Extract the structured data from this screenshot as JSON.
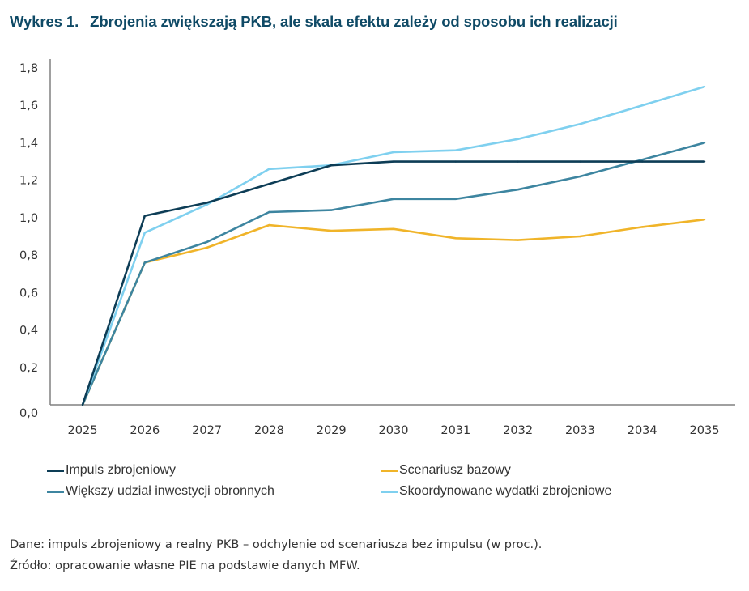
{
  "header": {
    "figure_number": "Wykres 1.",
    "title": "Zbrojenia zwiększają PKB, ale skala efektu zależy od sposobu ich realizacji"
  },
  "chart_data": {
    "type": "line",
    "title": "Zbrojenia zwiększają PKB, ale skala efektu zależy od sposobu ich realizacji",
    "xlabel": "",
    "ylabel": "",
    "x": [
      "2025",
      "2026",
      "2027",
      "2028",
      "2029",
      "2030",
      "2031",
      "2032",
      "2033",
      "2034",
      "2035"
    ],
    "ylim": [
      0,
      1.8
    ],
    "yticks": [
      "0,0",
      "0,2",
      "0,4",
      "0,6",
      "0,8",
      "1,0",
      "1,2",
      "1,4",
      "1,6",
      "1,8"
    ],
    "ytick_values": [
      0,
      0.2,
      0.4,
      0.6,
      0.8,
      1.0,
      1.2,
      1.4,
      1.6,
      1.8
    ],
    "grid": false,
    "legend_position": "bottom",
    "series": [
      {
        "name": "Impuls zbrojeniowy",
        "color": "#0d3d56",
        "values": [
          0,
          1.01,
          1.08,
          1.18,
          1.28,
          1.3,
          1.3,
          1.3,
          1.3,
          1.3,
          1.3
        ]
      },
      {
        "name": "Scenariusz bazowy",
        "color": "#f0b429",
        "values": [
          0,
          0.76,
          0.84,
          0.96,
          0.93,
          0.94,
          0.89,
          0.88,
          0.9,
          0.95,
          0.99
        ]
      },
      {
        "name": "Większy udział inwestycji obronnych",
        "color": "#3d85a0",
        "values": [
          0,
          0.76,
          0.87,
          1.03,
          1.04,
          1.1,
          1.1,
          1.15,
          1.22,
          1.31,
          1.4
        ]
      },
      {
        "name": "Skoordynowane wydatki zbrojeniowe",
        "color": "#7fd0ef",
        "values": [
          0,
          0.92,
          1.07,
          1.26,
          1.28,
          1.35,
          1.36,
          1.42,
          1.5,
          1.6,
          1.7
        ]
      }
    ]
  },
  "footer": {
    "data_note": "Dane: impuls zbrojeniowy a realny PKB – odchylenie od scenariusza bez impulsu (w proc.).",
    "source_prefix": "Źródło: opracowanie własne PIE na podstawie danych ",
    "source_link": "MFW",
    "source_suffix": "."
  }
}
